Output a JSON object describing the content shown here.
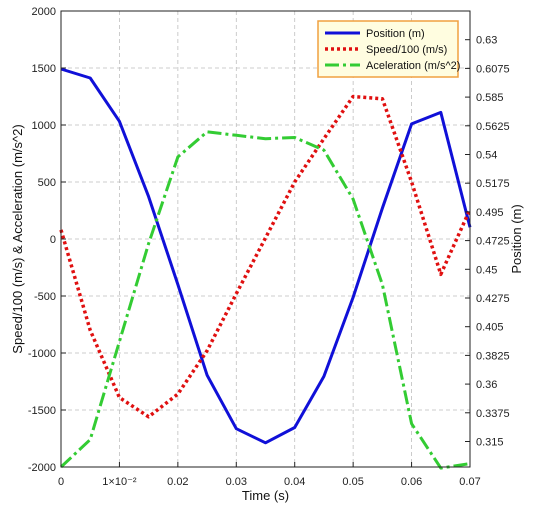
{
  "chart_data": {
    "type": "line",
    "title": "",
    "xlabel": "Time (s)",
    "ylabel_left": "Speed/100 (m/s) & Acceleration (m/s^2)",
    "ylabel_right": "Position (m)",
    "xlim": [
      0,
      0.07
    ],
    "ylim_left": [
      -2000,
      2000
    ],
    "ylim_right": [
      0.295,
      0.6525
    ],
    "x_ticks": [
      {
        "value": 0,
        "label": "0"
      },
      {
        "value": 0.01,
        "label": "1×10⁻²"
      },
      {
        "value": 0.02,
        "label": "0.02"
      },
      {
        "value": 0.03,
        "label": "0.03"
      },
      {
        "value": 0.04,
        "label": "0.04"
      },
      {
        "value": 0.05,
        "label": "0.05"
      },
      {
        "value": 0.06,
        "label": "0.06"
      },
      {
        "value": 0.07,
        "label": "0.07"
      }
    ],
    "y_left_ticks": [
      {
        "value": 2000,
        "label": "2000"
      },
      {
        "value": 1500,
        "label": "1500"
      },
      {
        "value": 1000,
        "label": "1000"
      },
      {
        "value": 500,
        "label": "500"
      },
      {
        "value": 0,
        "label": "0"
      },
      {
        "value": -500,
        "label": "-500"
      },
      {
        "value": -1000,
        "label": "-1000"
      },
      {
        "value": -1500,
        "label": "-1500"
      },
      {
        "value": -2000,
        "label": "-2000"
      }
    ],
    "y_right_ticks": [
      {
        "value": 0.63,
        "label": "0.63"
      },
      {
        "value": 0.6075,
        "label": "0.6075"
      },
      {
        "value": 0.585,
        "label": "0.585"
      },
      {
        "value": 0.5625,
        "label": "0.5625"
      },
      {
        "value": 0.54,
        "label": "0.54"
      },
      {
        "value": 0.5175,
        "label": "0.5175"
      },
      {
        "value": 0.495,
        "label": "0.495"
      },
      {
        "value": 0.4725,
        "label": "0.4725"
      },
      {
        "value": 0.45,
        "label": "0.45"
      },
      {
        "value": 0.4275,
        "label": "0.4275"
      },
      {
        "value": 0.405,
        "label": "0.405"
      },
      {
        "value": 0.3825,
        "label": "0.3825"
      },
      {
        "value": 0.36,
        "label": "0.36"
      },
      {
        "value": 0.3375,
        "label": "0.3375"
      },
      {
        "value": 0.315,
        "label": "0.315"
      }
    ],
    "grid": true,
    "legend_position": "top-right",
    "series": [
      {
        "name": "Position (m)",
        "axis": "right",
        "color": "#1010d8",
        "style": "solid",
        "x": [
          0,
          0.005,
          0.01,
          0.015,
          0.02,
          0.025,
          0.03,
          0.035,
          0.04,
          0.045,
          0.05,
          0.055,
          0.06,
          0.065,
          0.07
        ],
        "y": [
          0.607,
          0.6,
          0.566,
          0.507,
          0.438,
          0.367,
          0.325,
          0.314,
          0.326,
          0.366,
          0.428,
          0.498,
          0.564,
          0.573,
          0.483
        ]
      },
      {
        "name": "Speed/100 (m/s)",
        "axis": "left",
        "color": "#e01010",
        "style": "dotted",
        "x": [
          0,
          0.005,
          0.01,
          0.015,
          0.02,
          0.025,
          0.03,
          0.035,
          0.04,
          0.045,
          0.05,
          0.055,
          0.06,
          0.065,
          0.07
        ],
        "y": [
          80,
          -800,
          -1390,
          -1560,
          -1360,
          -980,
          -480,
          10,
          500,
          880,
          1250,
          1230,
          500,
          -310,
          260
        ]
      },
      {
        "name": "Aceleration (m/s^2)",
        "axis": "left",
        "color": "#33cc33",
        "style": "dashdot",
        "x": [
          0,
          0.005,
          0.01,
          0.015,
          0.02,
          0.025,
          0.03,
          0.035,
          0.04,
          0.045,
          0.05,
          0.055,
          0.06,
          0.065,
          0.07
        ],
        "y": [
          -2000,
          -1760,
          -900,
          -40,
          720,
          940,
          910,
          880,
          890,
          780,
          350,
          -400,
          -1620,
          -2010,
          -1970
        ]
      }
    ]
  }
}
